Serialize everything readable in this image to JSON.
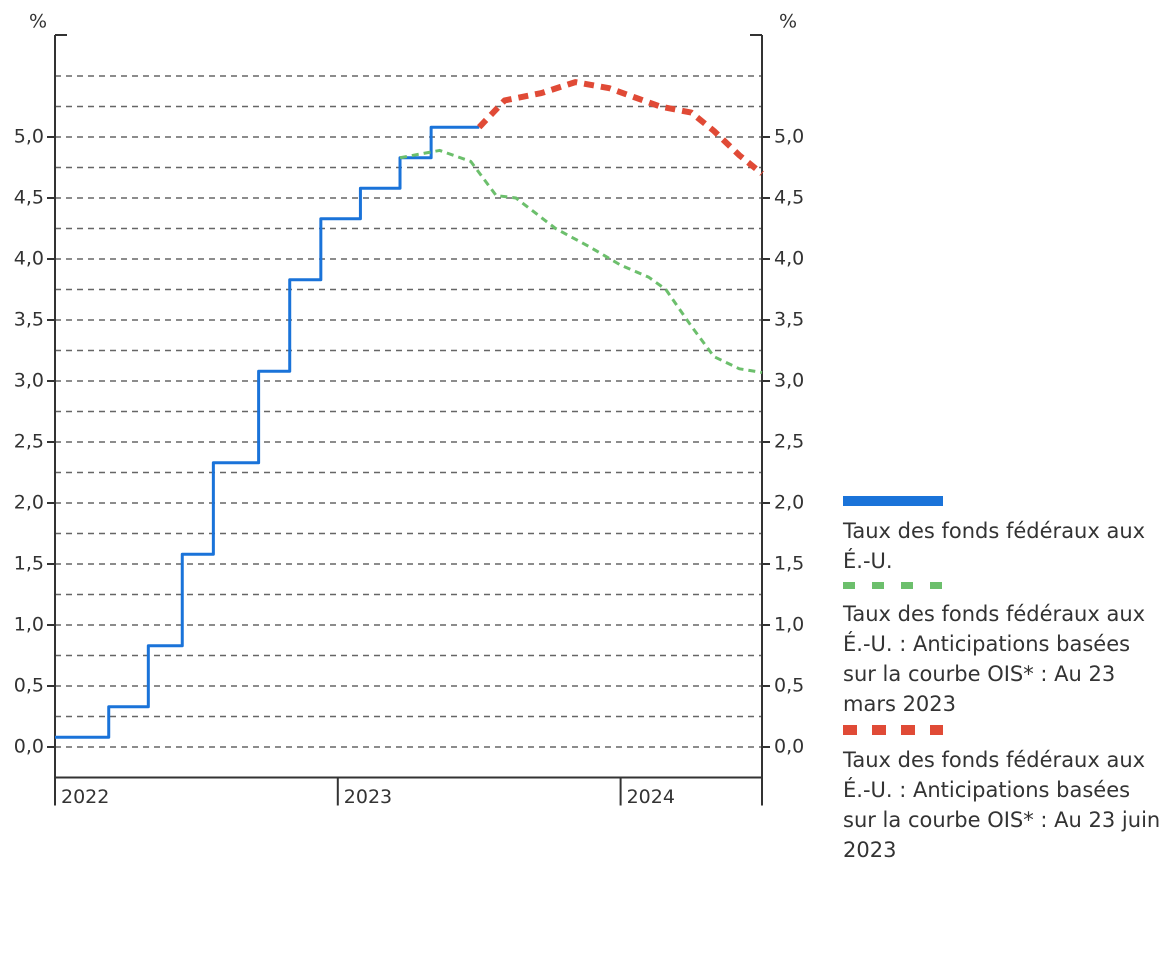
{
  "chart_data": {
    "type": "line",
    "y_label": "%",
    "y2_label": "%",
    "xlim": [
      2022,
      2024.5
    ],
    "xticks": [
      2022,
      2023,
      2024
    ],
    "ylim": [
      -0.25,
      5.75
    ],
    "yticks": [
      {
        "value": 0,
        "label": "0,0"
      },
      {
        "value": 0.5,
        "label": "0,5"
      },
      {
        "value": 1,
        "label": "1,0"
      },
      {
        "value": 1.5,
        "label": "1,5"
      },
      {
        "value": 2,
        "label": "2,0"
      },
      {
        "value": 2.5,
        "label": "2,5"
      },
      {
        "value": 3,
        "label": "3,0"
      },
      {
        "value": 3.5,
        "label": "3,5"
      },
      {
        "value": 4,
        "label": "4,0"
      },
      {
        "value": 4.5,
        "label": "4,5"
      },
      {
        "value": 5,
        "label": "5,0"
      }
    ],
    "y2lim": [
      -0.25,
      5.75
    ],
    "y2ticks": [
      {
        "value": 0,
        "label": "0,0"
      },
      {
        "value": 0.5,
        "label": "0,5"
      },
      {
        "value": 1,
        "label": "1,0"
      },
      {
        "value": 1.5,
        "label": "1,5"
      },
      {
        "value": 2,
        "label": "2,0"
      },
      {
        "value": 2.5,
        "label": "2,5"
      },
      {
        "value": 3,
        "label": "3,0"
      },
      {
        "value": 3.5,
        "label": "3,5"
      },
      {
        "value": 4,
        "label": "4,0"
      },
      {
        "value": 4.5,
        "label": "4,5"
      },
      {
        "value": 5,
        "label": "5,0"
      }
    ],
    "grid": true,
    "grid_values": [
      0,
      0.25,
      0.5,
      0.75,
      1,
      1.25,
      1.5,
      1.75,
      2,
      2.25,
      2.5,
      2.75,
      3,
      3.25,
      3.5,
      3.75,
      4,
      4.25,
      4.5,
      4.75,
      5,
      5.25,
      5.5
    ],
    "legend": "right",
    "series": [
      {
        "name": "Taux des fonds fédéraux aux  É.-U.",
        "color": "#1a73d9",
        "style": "step",
        "x": [
          2022,
          2022.19,
          2022.33,
          2022.45,
          2022.56,
          2022.72,
          2022.83,
          2022.94,
          2023.08,
          2023.22,
          2023.33,
          2023.5
        ],
        "values": [
          0.08,
          0.33,
          0.83,
          1.58,
          2.33,
          3.08,
          3.83,
          4.33,
          4.58,
          4.83,
          5.08,
          5.08
        ]
      },
      {
        "name": "Taux des fonds fédéraux aux É.-U. : Anticipations basées sur la courbe OIS* : Au 23 mars 2023",
        "color": "#6cbf6c",
        "style": "dotted",
        "x": [
          2023.22,
          2023.36,
          2023.47,
          2023.56,
          2023.63,
          2023.77,
          2023.89,
          2024.0,
          2024.1,
          2024.16,
          2024.25,
          2024.33,
          2024.42,
          2024.5
        ],
        "values": [
          4.83,
          4.89,
          4.8,
          4.52,
          4.5,
          4.25,
          4.1,
          3.95,
          3.85,
          3.75,
          3.45,
          3.2,
          3.1,
          3.07
        ]
      },
      {
        "name": "Taux des fonds fédéraux aux É.-U. : Anticipations basées sur la courbe OIS* : Au 23 juin 2023",
        "color": "#e04a36",
        "style": "dashed",
        "x": [
          2023.5,
          2023.59,
          2023.72,
          2023.84,
          2023.96,
          2024.14,
          2024.25,
          2024.33,
          2024.42,
          2024.5
        ],
        "values": [
          5.08,
          5.3,
          5.36,
          5.45,
          5.4,
          5.25,
          5.2,
          5.05,
          4.85,
          4.7
        ]
      }
    ]
  }
}
